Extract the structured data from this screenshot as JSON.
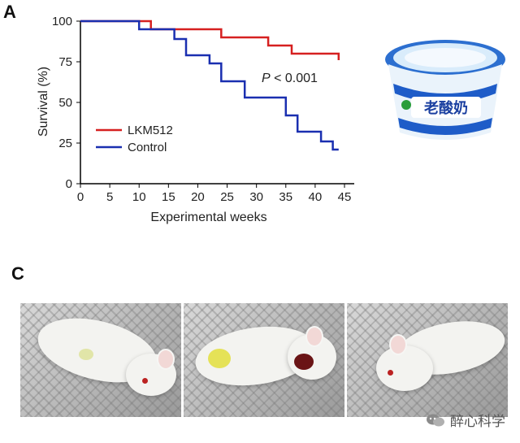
{
  "panels": {
    "a_label": "A",
    "c_label": "C"
  },
  "chart_data": {
    "type": "line",
    "step": true,
    "xlabel": "Experimental weeks",
    "ylabel": "Survival (%)",
    "xlim": [
      0,
      45
    ],
    "ylim": [
      0,
      100
    ],
    "xticks": [
      0,
      5,
      10,
      15,
      20,
      25,
      30,
      35,
      40,
      45
    ],
    "yticks": [
      0,
      25,
      50,
      75,
      100
    ],
    "annotation": {
      "italic": "P",
      "rest": " < 0.001"
    },
    "legend_position": "lower-left",
    "series": [
      {
        "name": "LKM512",
        "color": "#d62020",
        "points": [
          [
            0,
            100
          ],
          [
            12,
            100
          ],
          [
            12,
            95
          ],
          [
            24,
            95
          ],
          [
            24,
            90
          ],
          [
            32,
            90
          ],
          [
            32,
            85
          ],
          [
            36,
            85
          ],
          [
            36,
            80
          ],
          [
            44,
            80
          ],
          [
            44,
            76
          ]
        ]
      },
      {
        "name": "Control",
        "color": "#1a2fb0",
        "points": [
          [
            0,
            100
          ],
          [
            10,
            100
          ],
          [
            10,
            95
          ],
          [
            16,
            95
          ],
          [
            16,
            89
          ],
          [
            18,
            89
          ],
          [
            18,
            79
          ],
          [
            22,
            79
          ],
          [
            22,
            74
          ],
          [
            24,
            74
          ],
          [
            24,
            63
          ],
          [
            28,
            63
          ],
          [
            28,
            53
          ],
          [
            35,
            53
          ],
          [
            35,
            42
          ],
          [
            37,
            42
          ],
          [
            37,
            32
          ],
          [
            41,
            32
          ],
          [
            41,
            26
          ],
          [
            43,
            26
          ],
          [
            43,
            21
          ],
          [
            44,
            21
          ]
        ]
      }
    ]
  },
  "product_label": "老酸奶",
  "watermark": "醉心科学"
}
